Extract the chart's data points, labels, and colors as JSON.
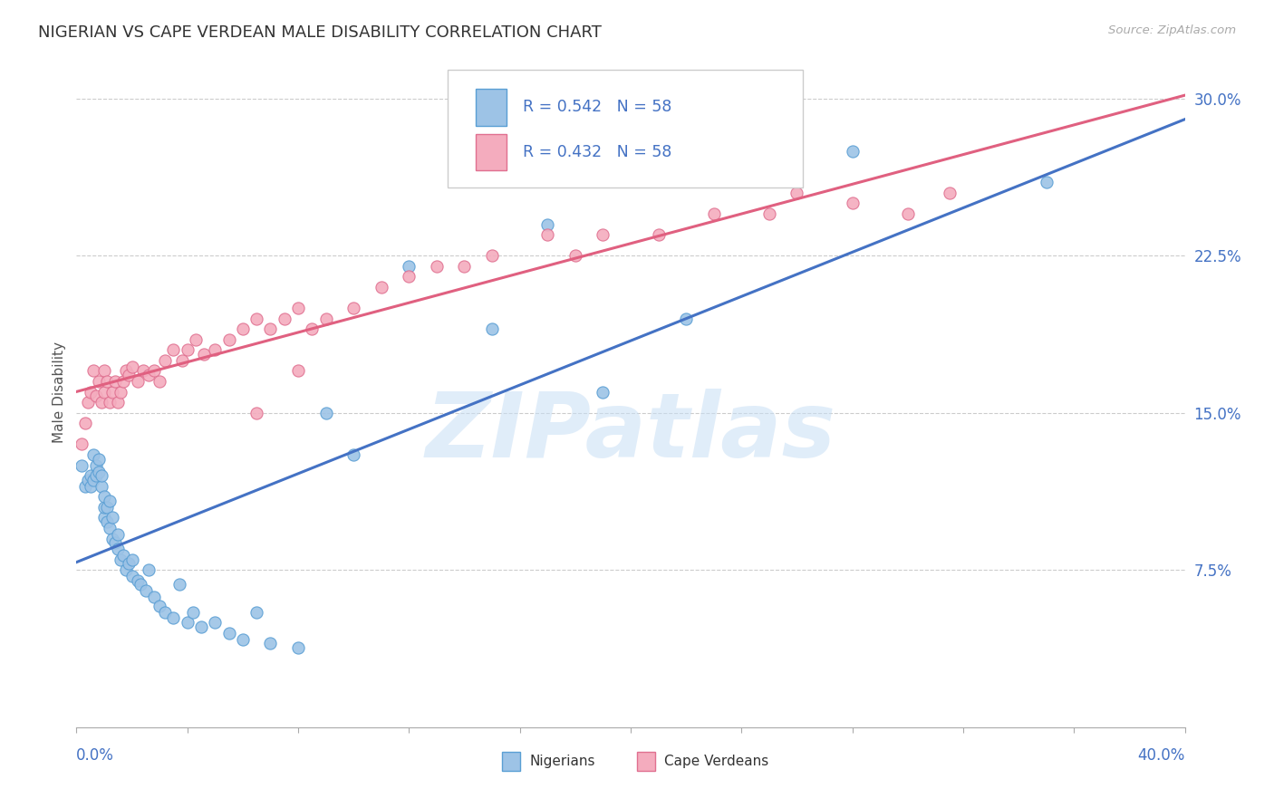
{
  "title": "NIGERIAN VS CAPE VERDEAN MALE DISABILITY CORRELATION CHART",
  "source": "Source: ZipAtlas.com",
  "ylabel": "Male Disability",
  "xmin": 0.0,
  "xmax": 0.4,
  "ymin": 0.0,
  "ymax": 0.32,
  "yticks": [
    0.075,
    0.15,
    0.225,
    0.3
  ],
  "ytick_labels": [
    "7.5%",
    "15.0%",
    "22.5%",
    "30.0%"
  ],
  "series1_color": "#9dc3e6",
  "series1_edge": "#5a9fd4",
  "series2_color": "#f4acbe",
  "series2_edge": "#e07090",
  "line1_color": "#4472c4",
  "line2_color": "#e06080",
  "legend_color": "#4472c4",
  "watermark": "ZIPatlas",
  "nigerian_x": [
    0.002,
    0.003,
    0.004,
    0.005,
    0.005,
    0.006,
    0.006,
    0.007,
    0.007,
    0.008,
    0.008,
    0.009,
    0.009,
    0.01,
    0.01,
    0.01,
    0.011,
    0.011,
    0.012,
    0.012,
    0.013,
    0.013,
    0.014,
    0.015,
    0.015,
    0.016,
    0.017,
    0.018,
    0.019,
    0.02,
    0.02,
    0.022,
    0.023,
    0.025,
    0.026,
    0.028,
    0.03,
    0.032,
    0.035,
    0.037,
    0.04,
    0.042,
    0.045,
    0.05,
    0.055,
    0.06,
    0.065,
    0.07,
    0.08,
    0.09,
    0.1,
    0.12,
    0.15,
    0.17,
    0.19,
    0.22,
    0.28,
    0.35
  ],
  "nigerian_y": [
    0.125,
    0.115,
    0.118,
    0.12,
    0.115,
    0.118,
    0.13,
    0.12,
    0.125,
    0.122,
    0.128,
    0.115,
    0.12,
    0.1,
    0.105,
    0.11,
    0.098,
    0.105,
    0.095,
    0.108,
    0.09,
    0.1,
    0.088,
    0.085,
    0.092,
    0.08,
    0.082,
    0.075,
    0.078,
    0.072,
    0.08,
    0.07,
    0.068,
    0.065,
    0.075,
    0.062,
    0.058,
    0.055,
    0.052,
    0.068,
    0.05,
    0.055,
    0.048,
    0.05,
    0.045,
    0.042,
    0.055,
    0.04,
    0.038,
    0.15,
    0.13,
    0.22,
    0.19,
    0.24,
    0.16,
    0.195,
    0.275,
    0.26
  ],
  "capeverdean_x": [
    0.002,
    0.003,
    0.004,
    0.005,
    0.006,
    0.007,
    0.008,
    0.009,
    0.01,
    0.01,
    0.011,
    0.012,
    0.013,
    0.014,
    0.015,
    0.016,
    0.017,
    0.018,
    0.019,
    0.02,
    0.022,
    0.024,
    0.026,
    0.028,
    0.03,
    0.032,
    0.035,
    0.038,
    0.04,
    0.043,
    0.046,
    0.05,
    0.055,
    0.06,
    0.065,
    0.07,
    0.075,
    0.08,
    0.085,
    0.09,
    0.1,
    0.11,
    0.12,
    0.13,
    0.14,
    0.15,
    0.17,
    0.19,
    0.21,
    0.23,
    0.26,
    0.28,
    0.3,
    0.315,
    0.25,
    0.18,
    0.08,
    0.065
  ],
  "capeverdean_y": [
    0.135,
    0.145,
    0.155,
    0.16,
    0.17,
    0.158,
    0.165,
    0.155,
    0.16,
    0.17,
    0.165,
    0.155,
    0.16,
    0.165,
    0.155,
    0.16,
    0.165,
    0.17,
    0.168,
    0.172,
    0.165,
    0.17,
    0.168,
    0.17,
    0.165,
    0.175,
    0.18,
    0.175,
    0.18,
    0.185,
    0.178,
    0.18,
    0.185,
    0.19,
    0.195,
    0.19,
    0.195,
    0.2,
    0.19,
    0.195,
    0.2,
    0.21,
    0.215,
    0.22,
    0.22,
    0.225,
    0.235,
    0.235,
    0.235,
    0.245,
    0.255,
    0.25,
    0.245,
    0.255,
    0.245,
    0.225,
    0.17,
    0.15
  ]
}
